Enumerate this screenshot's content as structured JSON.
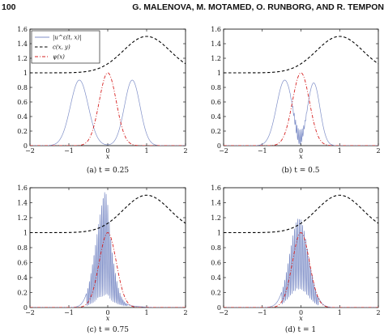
{
  "header": {
    "page_number": "100",
    "authors": "G. MALENOVA, M. MOTAMED, O. RUNBORG, AND R. TEMPON"
  },
  "legend": {
    "items": [
      {
        "label": "|u^ε(t, x)|",
        "color": "#7f8fc8",
        "style": "solid"
      },
      {
        "label": "c(x, y)",
        "color": "#000000",
        "style": "dashed"
      },
      {
        "label": "ψ(x)",
        "color": "#d62020",
        "style": "dash-dot"
      }
    ]
  },
  "chart_data": [
    {
      "type": "line",
      "caption": "(a) t = 0.25",
      "xlabel": "x",
      "xlim": [
        -2,
        2
      ],
      "ylim": [
        0,
        1.6
      ],
      "xticks": [
        -2,
        -1,
        0,
        1,
        2
      ],
      "yticks": [
        0,
        0.2,
        0.4,
        0.6,
        0.8,
        1,
        1.2,
        1.4,
        1.6
      ],
      "series": [
        {
          "name": "|u^ε(t, x)|",
          "style": "two-bumps",
          "peaks": [
            -0.73,
            0.63
          ],
          "amplitude": 0.9
        },
        {
          "name": "c(x, y)",
          "style": "dashed"
        },
        {
          "name": "ψ(x)",
          "style": "dash-dot"
        }
      ]
    },
    {
      "type": "line",
      "caption": "(b) t = 0.5",
      "xlabel": "x",
      "xlim": [
        -2,
        2
      ],
      "ylim": [
        0,
        1.6
      ],
      "xticks": [
        -2,
        -1,
        0,
        1,
        2
      ],
      "yticks": [
        0,
        0.2,
        0.4,
        0.6,
        0.8,
        1,
        1.2,
        1.4,
        1.6
      ],
      "series": [
        {
          "name": "|u^ε(t, x)|",
          "style": "oscillating-bumps",
          "peaks": [
            -0.4,
            0.35
          ],
          "amplitude": 0.9
        },
        {
          "name": "c(x, y)",
          "style": "dashed"
        },
        {
          "name": "ψ(x)",
          "style": "dash-dot"
        }
      ]
    },
    {
      "type": "line",
      "caption": "(c) t = 0.75",
      "xlabel": "x",
      "xlim": [
        -2,
        2
      ],
      "ylim": [
        0,
        1.6
      ],
      "xticks": [
        -2,
        -1,
        0,
        1,
        2
      ],
      "yticks": [
        0,
        0.2,
        0.4,
        0.6,
        0.8,
        1,
        1.2,
        1.4,
        1.6
      ],
      "series": [
        {
          "name": "|u^ε(t, x)|",
          "style": "oscillating-peak",
          "center": -0.1,
          "amplitude": 1.58
        },
        {
          "name": "c(x, y)",
          "style": "dashed"
        },
        {
          "name": "ψ(x)",
          "style": "dash-dot"
        }
      ]
    },
    {
      "type": "line",
      "caption": "(d) t = 1",
      "xlabel": "x",
      "xlim": [
        -2,
        2
      ],
      "ylim": [
        0,
        1.6
      ],
      "xticks": [
        -2,
        -1,
        0,
        1,
        2
      ],
      "yticks": [
        0,
        0.2,
        0.4,
        0.6,
        0.8,
        1,
        1.2,
        1.4,
        1.6
      ],
      "series": [
        {
          "name": "|u^ε(t, x)|",
          "style": "oscillating-peak",
          "center": -0.05,
          "amplitude": 1.28
        },
        {
          "name": "c(x, y)",
          "style": "dashed"
        },
        {
          "name": "ψ(x)",
          "style": "dash-dot"
        }
      ]
    }
  ]
}
